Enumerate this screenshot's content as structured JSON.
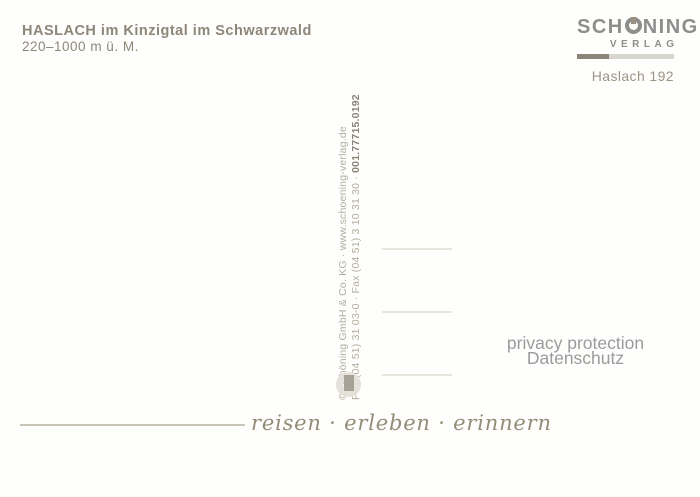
{
  "card": {
    "title": "HASLACH im Kinzigtal im Schwarzwald",
    "subtitle": "220–1000 m ü. M."
  },
  "publisher": {
    "name_prefix": "SCH",
    "name_suffix": "NING",
    "subtitle": "VERLAG",
    "card_ref": "Haslach 192"
  },
  "imprint": {
    "line1": "© Schöning GmbH & Co. KG · www.schoening-verlag.de",
    "line2_prefix": "Fon (04 51) 31 03-0 · Fax (04 51) 3 10 31 30 · ",
    "order_number": "001.77715.0192"
  },
  "watermark": {
    "line1": "privacy protection",
    "line2": "Datenschutz"
  },
  "footer": {
    "slogan": "reisen · erleben · erinnern"
  },
  "colors": {
    "header_text": "#8d8779",
    "logo_gray": "#8e8e8d",
    "card_ref_tan": "#9d9484",
    "bar_dark": "#8a8479",
    "bar_light": "#d9d6cf",
    "imprint_light": "#b2ad9f",
    "imprint_bold": "#8a8478",
    "address_line": "#e8e5dc",
    "watermark_gray": "#9b9b9b",
    "slogan_olive": "#938c79"
  }
}
